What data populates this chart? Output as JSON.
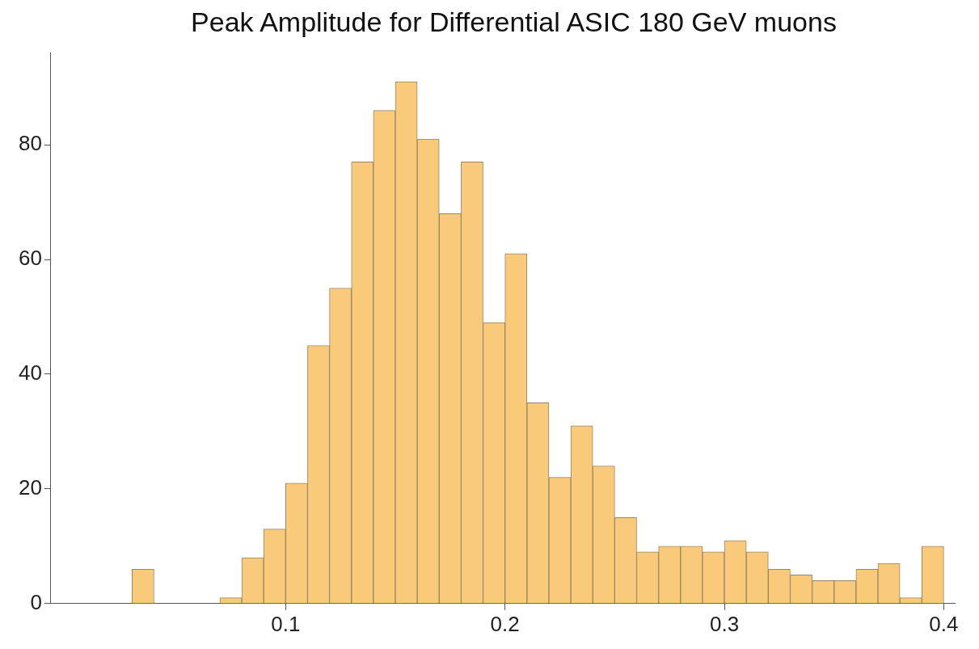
{
  "chart_data": {
    "type": "histogram",
    "title": "Peak Amplitude for Differential ASIC 180 GeV muons",
    "bins": [
      0.03,
      0.04,
      0.05,
      0.06,
      0.07,
      0.08,
      0.09,
      0.1,
      0.11,
      0.12,
      0.13,
      0.14,
      0.15,
      0.16,
      0.17,
      0.18,
      0.19,
      0.2,
      0.21,
      0.22,
      0.23,
      0.24,
      0.25,
      0.26,
      0.27,
      0.28,
      0.29,
      0.3,
      0.31,
      0.32,
      0.33,
      0.34,
      0.35,
      0.36,
      0.37,
      0.38,
      0.39,
      0.4
    ],
    "values": [
      6,
      0,
      0,
      0,
      1,
      8,
      13,
      21,
      45,
      55,
      77,
      86,
      91,
      81,
      68,
      77,
      49,
      61,
      35,
      22,
      31,
      24,
      15,
      9,
      10,
      10,
      9,
      11,
      9,
      6,
      5,
      4,
      4,
      6,
      7,
      1,
      10
    ],
    "color": "#f8ca7a",
    "xlim": [
      -0.007,
      0.405
    ],
    "xticks": [
      0.1,
      0.2,
      0.3,
      0.4
    ],
    "ylim": [
      0,
      96
    ],
    "yticks": [
      0,
      20,
      40,
      60,
      80
    ],
    "grid": false,
    "legend": false
  }
}
